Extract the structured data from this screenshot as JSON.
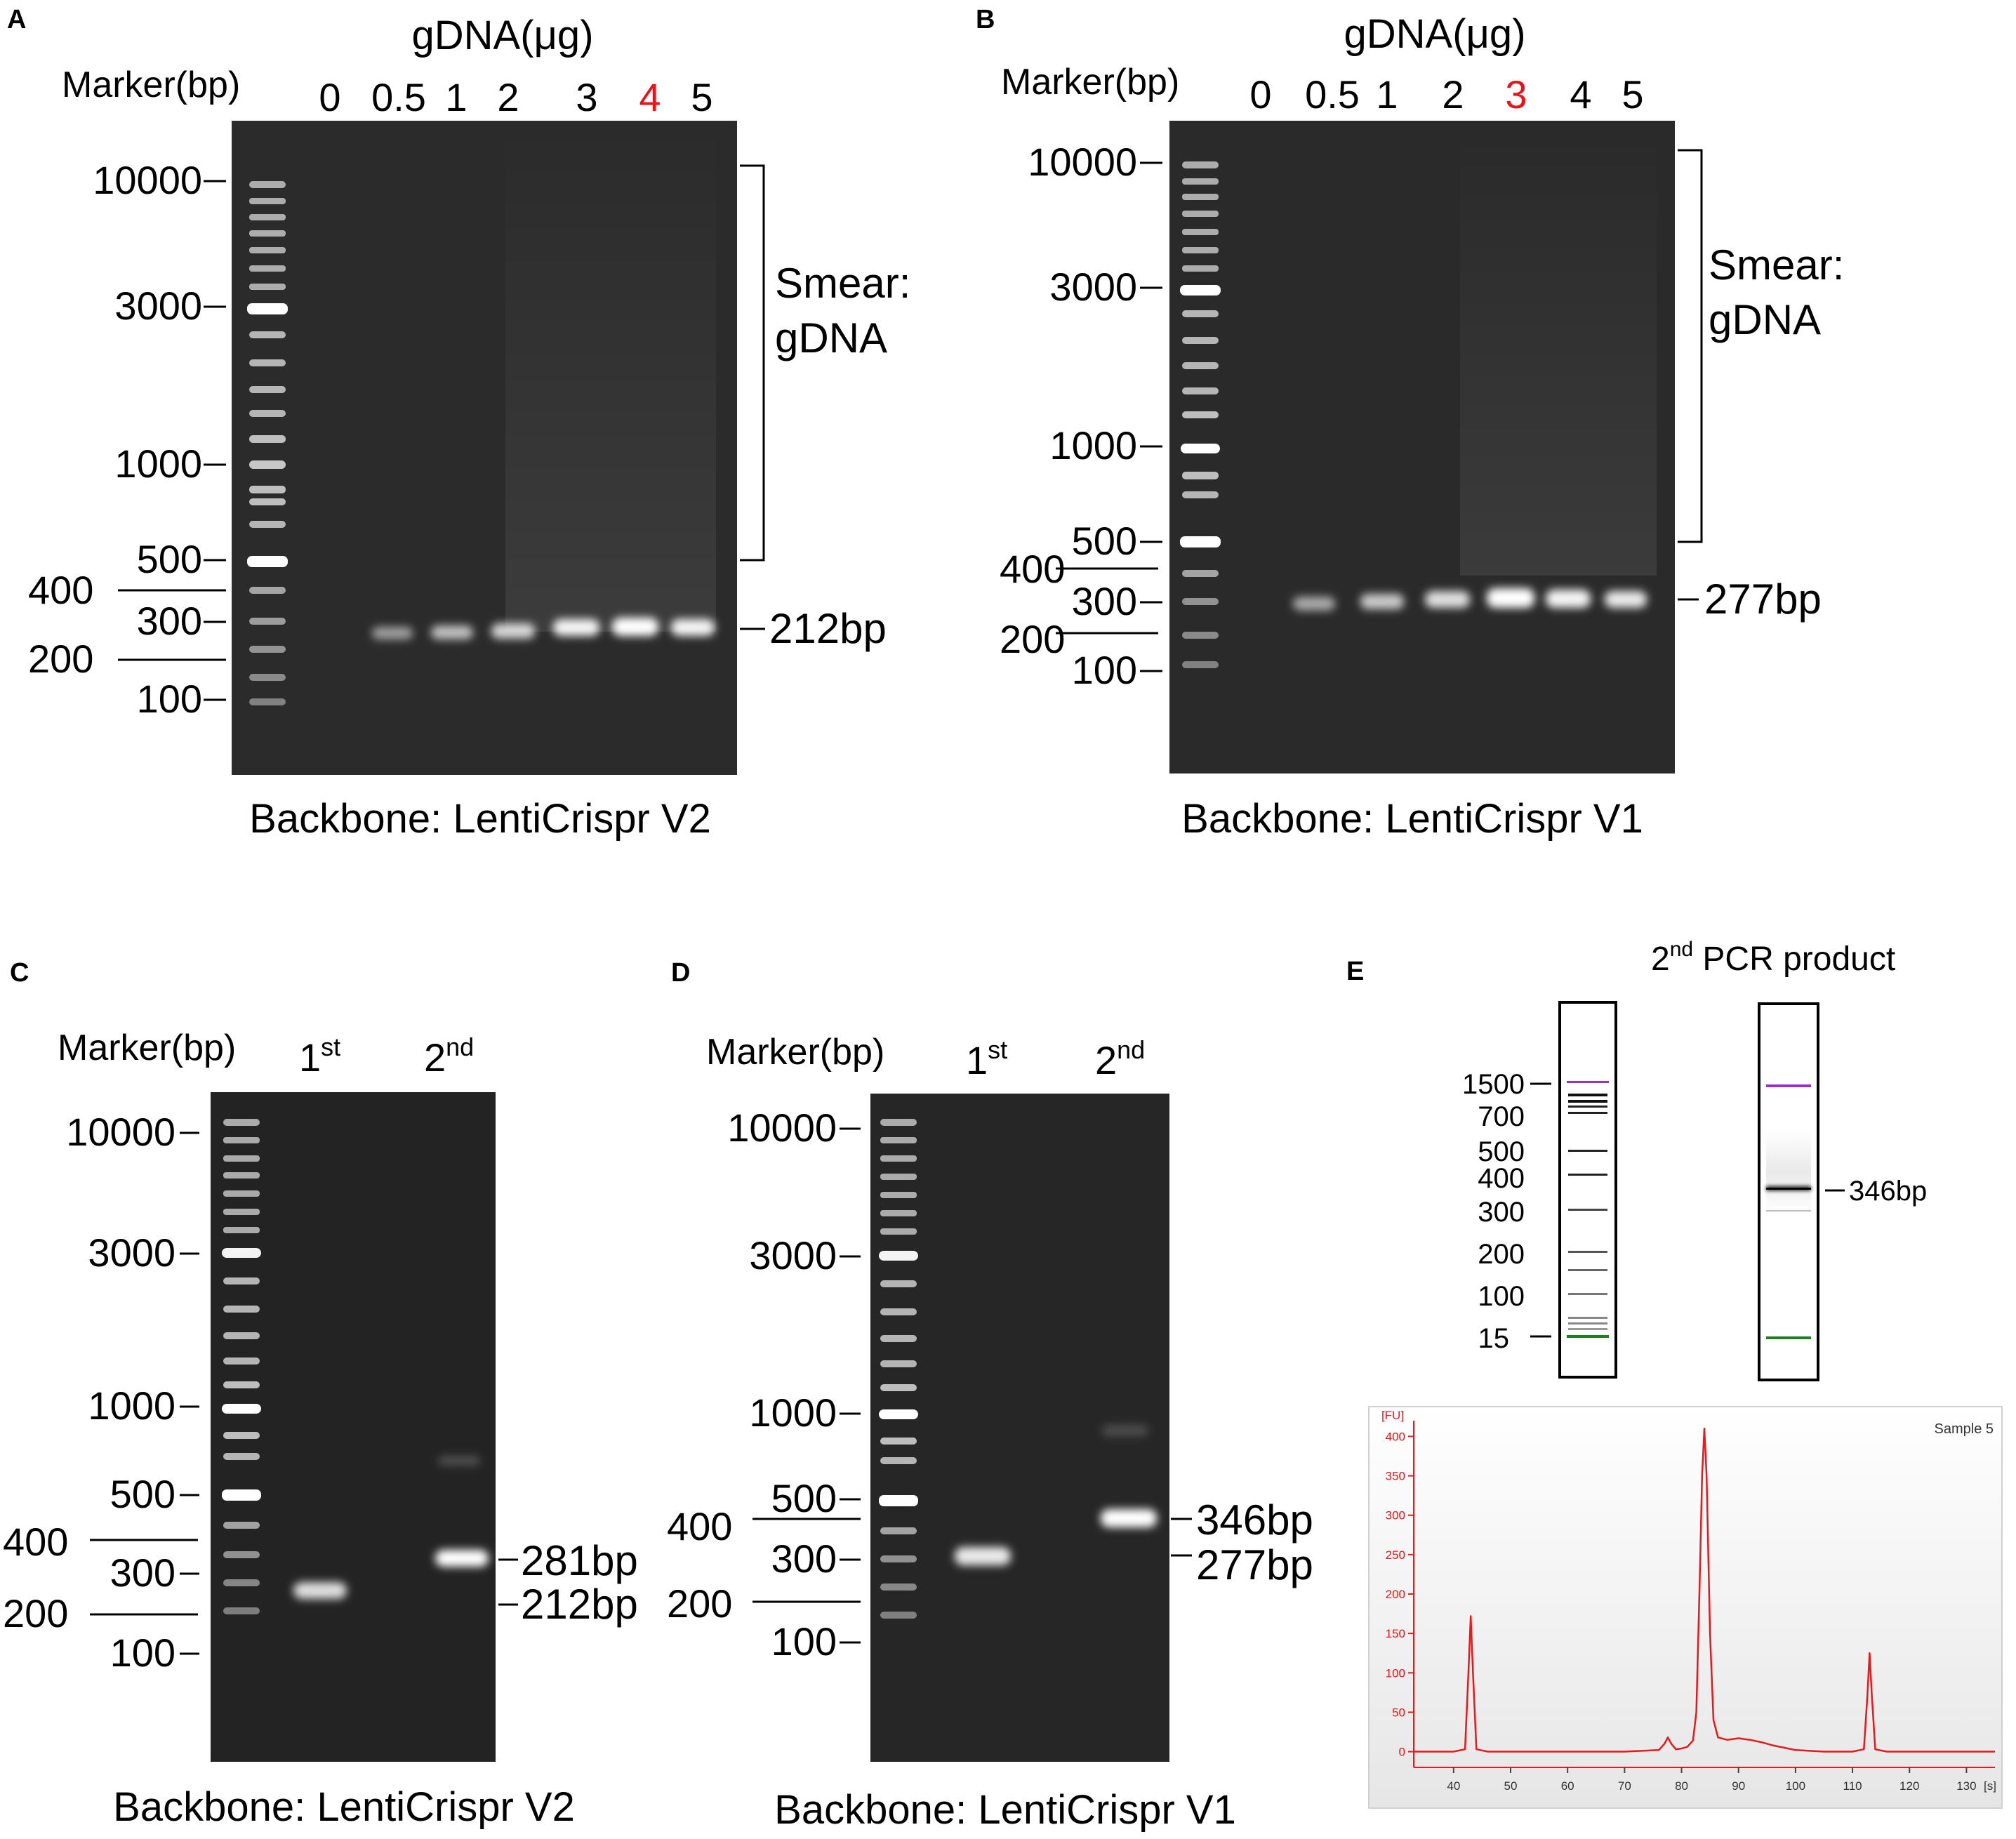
{
  "colors": {
    "highlight": "#e8141c",
    "gel_bg": "#2a2a2a",
    "trace": "#e41a1c",
    "upper_marker": "#9b30d0",
    "lower_marker": "#1e7f1e"
  },
  "panels": {
    "A": {
      "letter": "A",
      "title": "gDNA(μg)",
      "marker_label": "Marker(bp)",
      "lanes": [
        "0",
        "0.5",
        "1",
        "2",
        "3",
        "4",
        "5"
      ],
      "highlight_lane": "4",
      "ladder_ticks": [
        "10000",
        "3000",
        "1000",
        "500",
        "300",
        "100"
      ],
      "ladder_outer": [
        "400",
        "200"
      ],
      "bracket_label_1": "Smear:",
      "bracket_label_2": "gDNA",
      "band_label": "212bp",
      "caption": "Backbone: LentiCrispr V2"
    },
    "B": {
      "letter": "B",
      "title": "gDNA(μg)",
      "marker_label": "Marker(bp)",
      "lanes": [
        "0",
        "0.5",
        "1",
        "2",
        "3",
        "4",
        "5"
      ],
      "highlight_lane": "3",
      "ladder_ticks": [
        "10000",
        "3000",
        "1000",
        "500",
        "300",
        "100"
      ],
      "ladder_outer": [
        "400",
        "200"
      ],
      "bracket_label_1": "Smear:",
      "bracket_label_2": "gDNA",
      "band_label": "277bp",
      "caption": "Backbone: LentiCrispr V1"
    },
    "C": {
      "letter": "C",
      "marker_label": "Marker(bp)",
      "lane1": "1",
      "lane1_sup": "st",
      "lane2": "2",
      "lane2_sup": "nd",
      "ladder_ticks": [
        "10000",
        "3000",
        "1000",
        "500",
        "300",
        "100"
      ],
      "ladder_outer": [
        "400",
        "200"
      ],
      "band_labels": [
        "281bp",
        "212bp"
      ],
      "caption": "Backbone: LentiCrispr V2"
    },
    "D": {
      "letter": "D",
      "marker_label": "Marker(bp)",
      "lane1": "1",
      "lane1_sup": "st",
      "lane2": "2",
      "lane2_sup": "nd",
      "ladder_ticks": [
        "10000",
        "3000",
        "1000",
        "500",
        "300",
        "100"
      ],
      "ladder_outer": [
        "400",
        "200"
      ],
      "band_labels": [
        "346bp",
        "277bp"
      ],
      "caption": "Backbone: LentiCrispr V1"
    },
    "E": {
      "letter": "E",
      "title_num": "2",
      "title_sup": "nd",
      "title_rest": " PCR product",
      "ladder_labels": [
        "1500",
        "700",
        "500",
        "400",
        "300",
        "200",
        "100",
        "15"
      ],
      "band_label": "346bp",
      "sample_label": "Sample 5"
    }
  },
  "chart_data": {
    "type": "line",
    "title": "Sample 5",
    "xlabel": "[s]",
    "ylabel": "[FU]",
    "xlim": [
      33,
      135
    ],
    "ylim": [
      -20,
      420
    ],
    "x_ticks": [
      40,
      50,
      60,
      70,
      80,
      90,
      100,
      110,
      120,
      130
    ],
    "y_ticks": [
      0,
      50,
      100,
      150,
      200,
      250,
      300,
      350,
      400
    ],
    "series": [
      {
        "x": [
          33,
          40,
          42,
          42.6,
          43,
          43.4,
          44,
          46,
          60,
          70,
          76,
          77,
          77.6,
          78.2,
          79,
          80,
          81,
          82,
          82.6,
          83.2,
          83.6,
          84,
          84.4,
          85,
          85.6,
          86.4,
          88,
          90,
          92,
          94,
          96,
          98,
          100,
          105,
          110,
          112,
          112.6,
          113,
          113.4,
          114,
          116,
          120,
          135
        ],
        "y": [
          0,
          0,
          3,
          100,
          172,
          100,
          3,
          0,
          0,
          0,
          2,
          10,
          18,
          10,
          3,
          4,
          6,
          14,
          50,
          220,
          350,
          410,
          350,
          150,
          40,
          18,
          15,
          17,
          15,
          12,
          8,
          5,
          2,
          0,
          0,
          3,
          70,
          125,
          70,
          3,
          0,
          0,
          0
        ]
      }
    ]
  }
}
